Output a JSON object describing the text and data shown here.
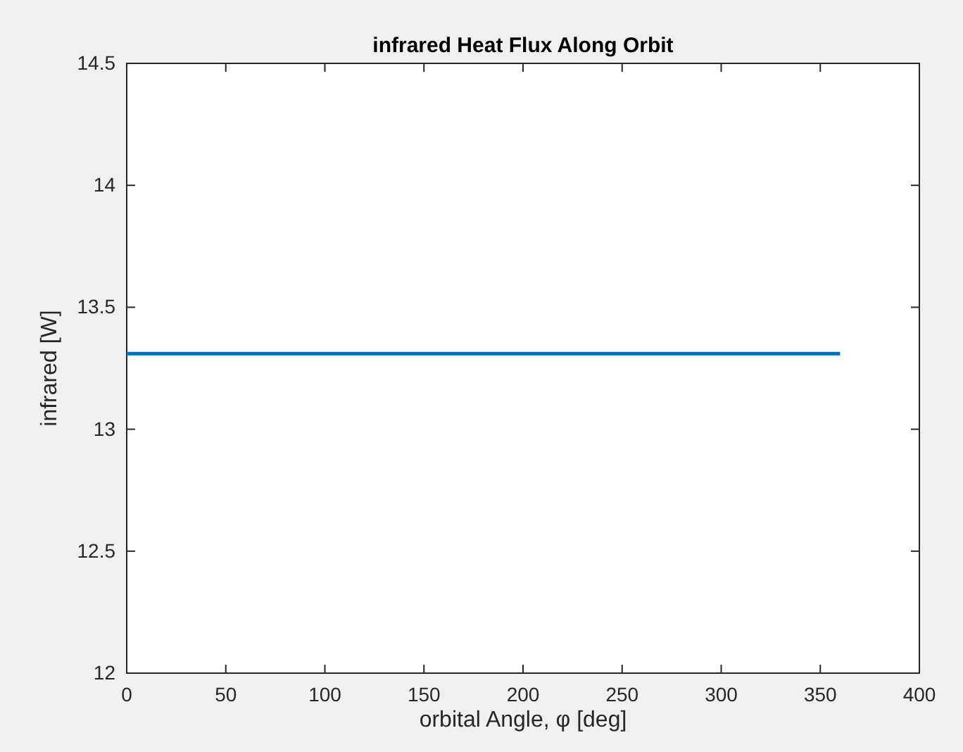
{
  "chart_data": {
    "type": "line",
    "title": "infrared Heat Flux Along Orbit",
    "xlabel": "orbital Angle, φ [deg]",
    "ylabel": "infrared  [W]",
    "x": [
      0,
      360
    ],
    "series": [
      {
        "color": "#0072bd",
        "values": [
          13.31,
          13.31
        ]
      }
    ],
    "xlim": [
      0,
      400
    ],
    "xticks": [
      0,
      50,
      100,
      150,
      200,
      250,
      300,
      350,
      400
    ],
    "ylim": [
      12,
      14.5
    ],
    "yticks": [
      12,
      12.5,
      13,
      13.5,
      14,
      14.5
    ],
    "grid": false,
    "marker": "none",
    "line_style": "solid"
  }
}
